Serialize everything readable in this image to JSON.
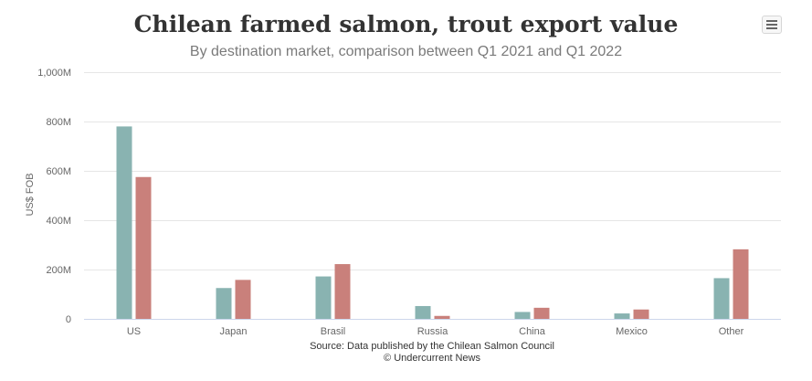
{
  "chart_data": {
    "type": "bar",
    "title": "Chilean farmed salmon, trout export value",
    "subtitle": "By destination market, comparison between Q1 2021 and Q1 2022",
    "ylabel": "US$ FOB",
    "xlabel": "",
    "categories": [
      "US",
      "Japan",
      "Brasil",
      "Russia",
      "China",
      "Mexico",
      "Other"
    ],
    "series": [
      {
        "color": "#89b3b1",
        "values": [
          780,
          125,
          172,
          52,
          28,
          22,
          165
        ]
      },
      {
        "color": "#c9807b",
        "values": [
          575,
          158,
          222,
          12,
          45,
          38,
          282
        ]
      }
    ],
    "ylim": [
      0,
      1000
    ],
    "yticks": [
      0,
      200,
      400,
      600,
      800,
      1000
    ],
    "ytick_labels": [
      "0",
      "200M",
      "400M",
      "600M",
      "800M",
      "1,000M"
    ],
    "grid": true,
    "legend": "none",
    "source": "Source: Data published by the Chilean Salmon Council",
    "credit": "© Undercurrent News"
  },
  "menu": {
    "icon": "hamburger-menu-icon"
  }
}
